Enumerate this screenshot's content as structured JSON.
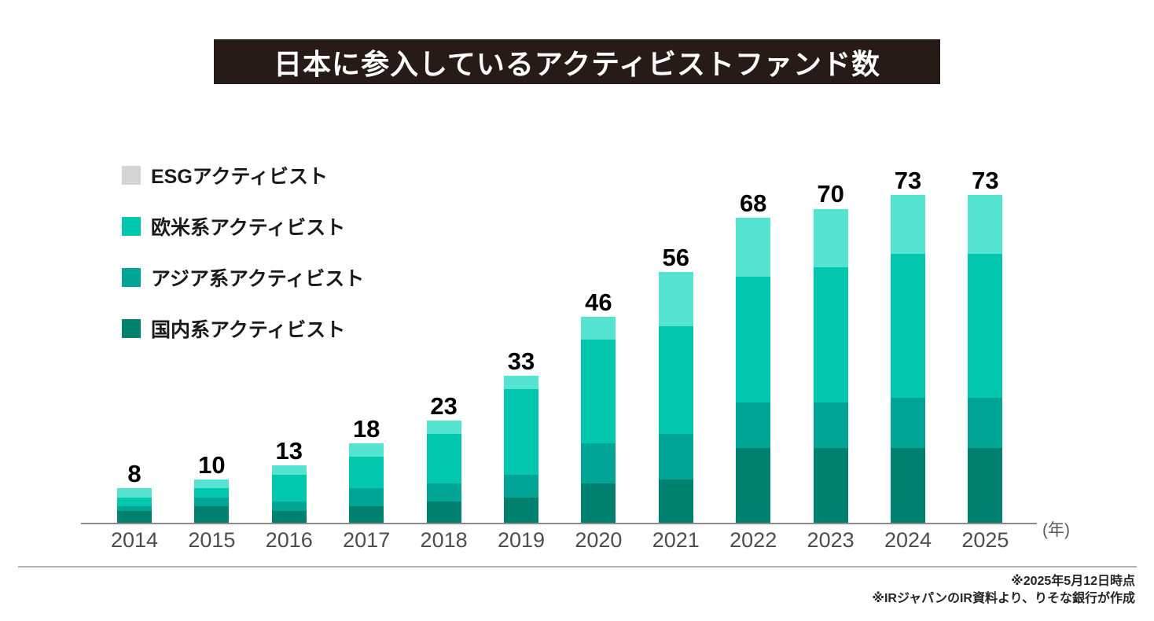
{
  "title": {
    "text": "日本に参入しているアクティビストファンド数"
  },
  "legend": {
    "items": [
      {
        "name": "esg",
        "label": "ESGアクティビスト",
        "color": "#d5d5d5"
      },
      {
        "name": "western",
        "label": "欧米系アクティビスト",
        "color": "#00c7ae"
      },
      {
        "name": "asian",
        "label": "アジア系アクティビスト",
        "color": "#00a596"
      },
      {
        "name": "domestic",
        "label": "国内系アクティビスト",
        "color": "#00806f"
      }
    ]
  },
  "chart_data": {
    "type": "bar",
    "stacked": true,
    "title": "日本に参入しているアクティビストファンド数",
    "categories": [
      "2014",
      "2015",
      "2016",
      "2017",
      "2018",
      "2019",
      "2020",
      "2021",
      "2022",
      "2023",
      "2024",
      "2025"
    ],
    "totals": [
      8,
      10,
      13,
      18,
      23,
      33,
      46,
      56,
      68,
      70,
      73,
      73
    ],
    "series": [
      {
        "name": "国内系アクティビスト",
        "color": "#00806f",
        "values": [
          3,
          4,
          3,
          4,
          5,
          6,
          9,
          10,
          17,
          17,
          17,
          17
        ]
      },
      {
        "name": "アジア系アクティビスト",
        "color": "#00a596",
        "values": [
          1,
          2,
          2,
          4,
          4,
          5,
          9,
          10,
          10,
          10,
          11,
          11
        ]
      },
      {
        "name": "欧米系アクティビスト",
        "color": "#00c7ae",
        "values": [
          2,
          2,
          6,
          7,
          11,
          19,
          23,
          24,
          28,
          30,
          32,
          32
        ]
      },
      {
        "name": "ESGアクティビスト",
        "color": "#55e3d2",
        "values": [
          2,
          2,
          2,
          3,
          3,
          3,
          5,
          12,
          13,
          13,
          13,
          13
        ]
      }
    ],
    "x_unit_label": "(年)",
    "ylim": [
      0,
      73
    ],
    "grid": false,
    "legend_position": "upper-left",
    "bar_label": "total-on-top"
  },
  "footer": {
    "notes": [
      "※2025年5月12日時点",
      "※IRジャパンのIR資料より、りそな銀行が作成"
    ]
  }
}
